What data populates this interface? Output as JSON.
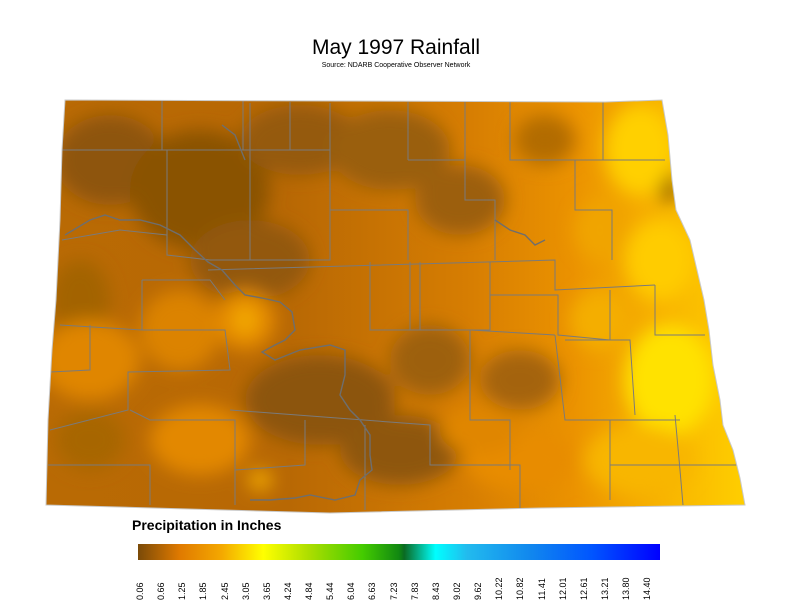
{
  "title": "May 1997 Rainfall",
  "subtitle": "Source: NDARB Cooperative Observer Network",
  "legend": {
    "title": "Precipitation in Inches",
    "ticks": [
      "0.06",
      "0.66",
      "1.25",
      "1.85",
      "2.45",
      "3.05",
      "3.65",
      "4.24",
      "4.84",
      "5.44",
      "6.04",
      "6.63",
      "7.23",
      "7.83",
      "8.43",
      "9.02",
      "9.62",
      "10.22",
      "10.82",
      "11.41",
      "12.01",
      "12.61",
      "13.21",
      "13.80",
      "14.40"
    ]
  },
  "colors": {
    "dry": "#8b5508",
    "mid": "#e88a00",
    "wet": "#ffd400",
    "county_lines": "#7a7a7a"
  }
}
